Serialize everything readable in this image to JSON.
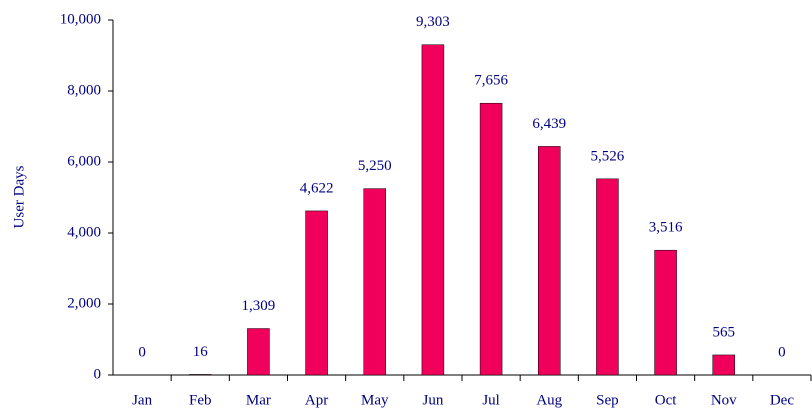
{
  "chart_data": {
    "type": "bar",
    "y_label": "User Days",
    "categories": [
      "Jan",
      "Feb",
      "Mar",
      "Apr",
      "May",
      "Jun",
      "Jul",
      "Aug",
      "Sep",
      "Oct",
      "Nov",
      "Dec"
    ],
    "values": [
      0,
      16,
      1309,
      4622,
      5250,
      9303,
      7656,
      6439,
      5526,
      3516,
      565,
      0
    ],
    "value_labels": [
      "0",
      "16",
      "1,309",
      "4,622",
      "5,250",
      "9,303",
      "7,656",
      "6,439",
      "5,526",
      "3,516",
      "565",
      "0"
    ],
    "color": "#f0005a",
    "ylim": [
      0,
      10000
    ],
    "yticks": [
      0,
      {
        "value": 2000,
        "label": "2,000"
      },
      {
        "value": 4000,
        "label": "4,000"
      },
      {
        "value": 6000,
        "label": "6,000"
      },
      {
        "value": 8000,
        "label": "8,000"
      },
      {
        "value": 10000,
        "label": "10,000"
      }
    ],
    "grid": false
  }
}
